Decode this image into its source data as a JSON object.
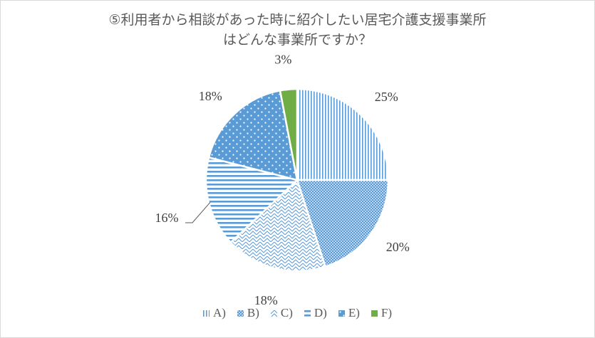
{
  "chart_data": {
    "type": "pie",
    "title_lines": [
      "⑤利用者から相談があった時に紹介したい居宅介護支援事業所",
      "はどんな事業所ですか？"
    ],
    "categories": [
      "A)",
      "B)",
      "C)",
      "D)",
      "E)",
      "F)"
    ],
    "values": [
      25,
      20,
      18,
      16,
      18,
      3
    ],
    "labels": [
      "25%",
      "20%",
      "18%",
      "16%",
      "18%",
      "3%"
    ],
    "unit": "%",
    "legend_position": "bottom",
    "colors": {
      "primary": "#5b9bd5",
      "green": "#70ad47",
      "text": "#595959",
      "border": "#d9d9d9"
    },
    "slice_patterns": [
      "vertical-stripes",
      "dots-dense",
      "zigzag",
      "horizontal-stripes",
      "dots-sparse",
      "solid-green"
    ]
  }
}
